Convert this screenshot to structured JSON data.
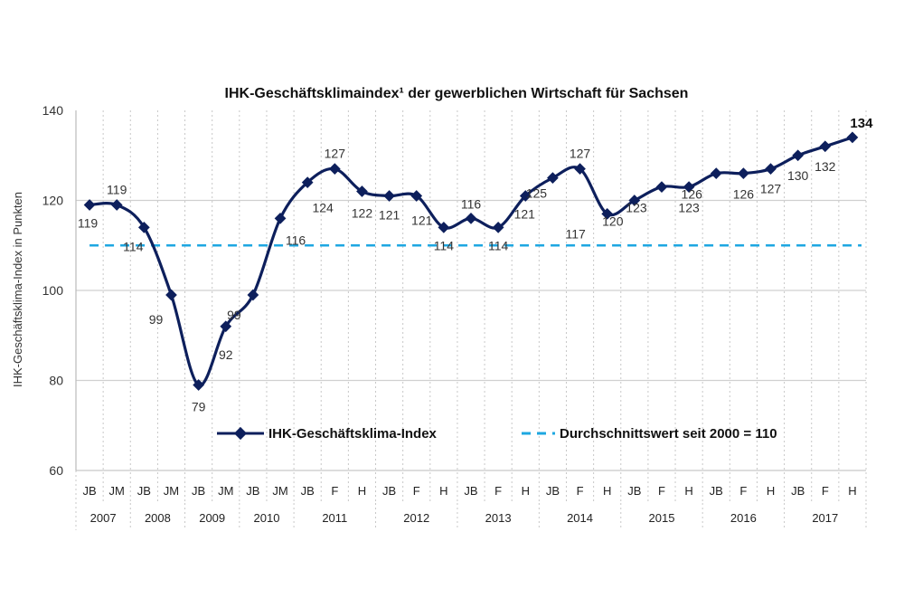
{
  "chart_data": {
    "type": "line",
    "title": "IHK-Geschäftsklimaindex¹ der gewerblichen Wirtschaft für Sachsen",
    "ylabel": "IHK-Geschäftsklima-Index  in Punkten",
    "xlabel": "",
    "ylim": [
      60,
      140
    ],
    "yticks": [
      60,
      80,
      100,
      120,
      140
    ],
    "grid": true,
    "legend_position": "bottom-inside",
    "categories": [
      "JB",
      "JM",
      "JB",
      "JM",
      "JB",
      "JM",
      "JB",
      "JM",
      "JB",
      "F",
      "H",
      "JB",
      "F",
      "H",
      "JB",
      "F",
      "H",
      "JB",
      "F",
      "H",
      "JB",
      "F",
      "H",
      "JB",
      "F",
      "H",
      "JB",
      "F",
      "H"
    ],
    "year_groups": [
      {
        "year": "2007",
        "count": 2
      },
      {
        "year": "2008",
        "count": 2
      },
      {
        "year": "2009",
        "count": 2
      },
      {
        "year": "2010",
        "count": 2
      },
      {
        "year": "2011",
        "count": 3
      },
      {
        "year": "2012",
        "count": 3
      },
      {
        "year": "2013",
        "count": 3
      },
      {
        "year": "2014",
        "count": 3
      },
      {
        "year": "2015",
        "count": 3
      },
      {
        "year": "2016",
        "count": 3
      },
      {
        "year": "2017",
        "count": 3
      }
    ],
    "series": [
      {
        "name": "IHK-Geschäftsklima-Index",
        "color": "#0d1f5c",
        "marker": "diamond",
        "values": [
          119,
          119,
          114,
          99,
          79,
          92,
          99,
          116,
          124,
          127,
          122,
          121,
          121,
          114,
          116,
          114,
          121,
          125,
          127,
          117,
          120,
          123,
          123,
          126,
          126,
          127,
          130,
          132,
          134
        ]
      }
    ],
    "reference_line": {
      "name": "Durchschnittswert seit 2000 = 110",
      "value": 110,
      "color": "#1ea7e1",
      "style": "dashed"
    }
  }
}
